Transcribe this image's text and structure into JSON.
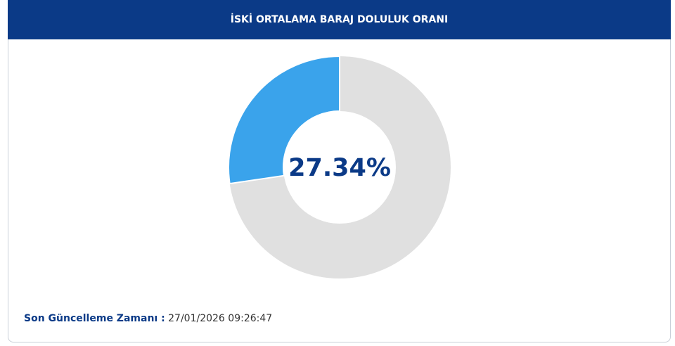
{
  "chart_data": {
    "type": "donut",
    "title": "İSKİ ORTALAMA BARAJ DOLULUK ORANI",
    "values": [
      27.34
    ],
    "value_labels": [
      "27.34%"
    ],
    "color": "#3aa3eb",
    "track_color": "#e0e0e0",
    "ylim": [
      0,
      100
    ]
  },
  "footer": {
    "label": "Son Güncelleme Zamanı :",
    "timestamp": "27/01/2026 09:26:47"
  }
}
